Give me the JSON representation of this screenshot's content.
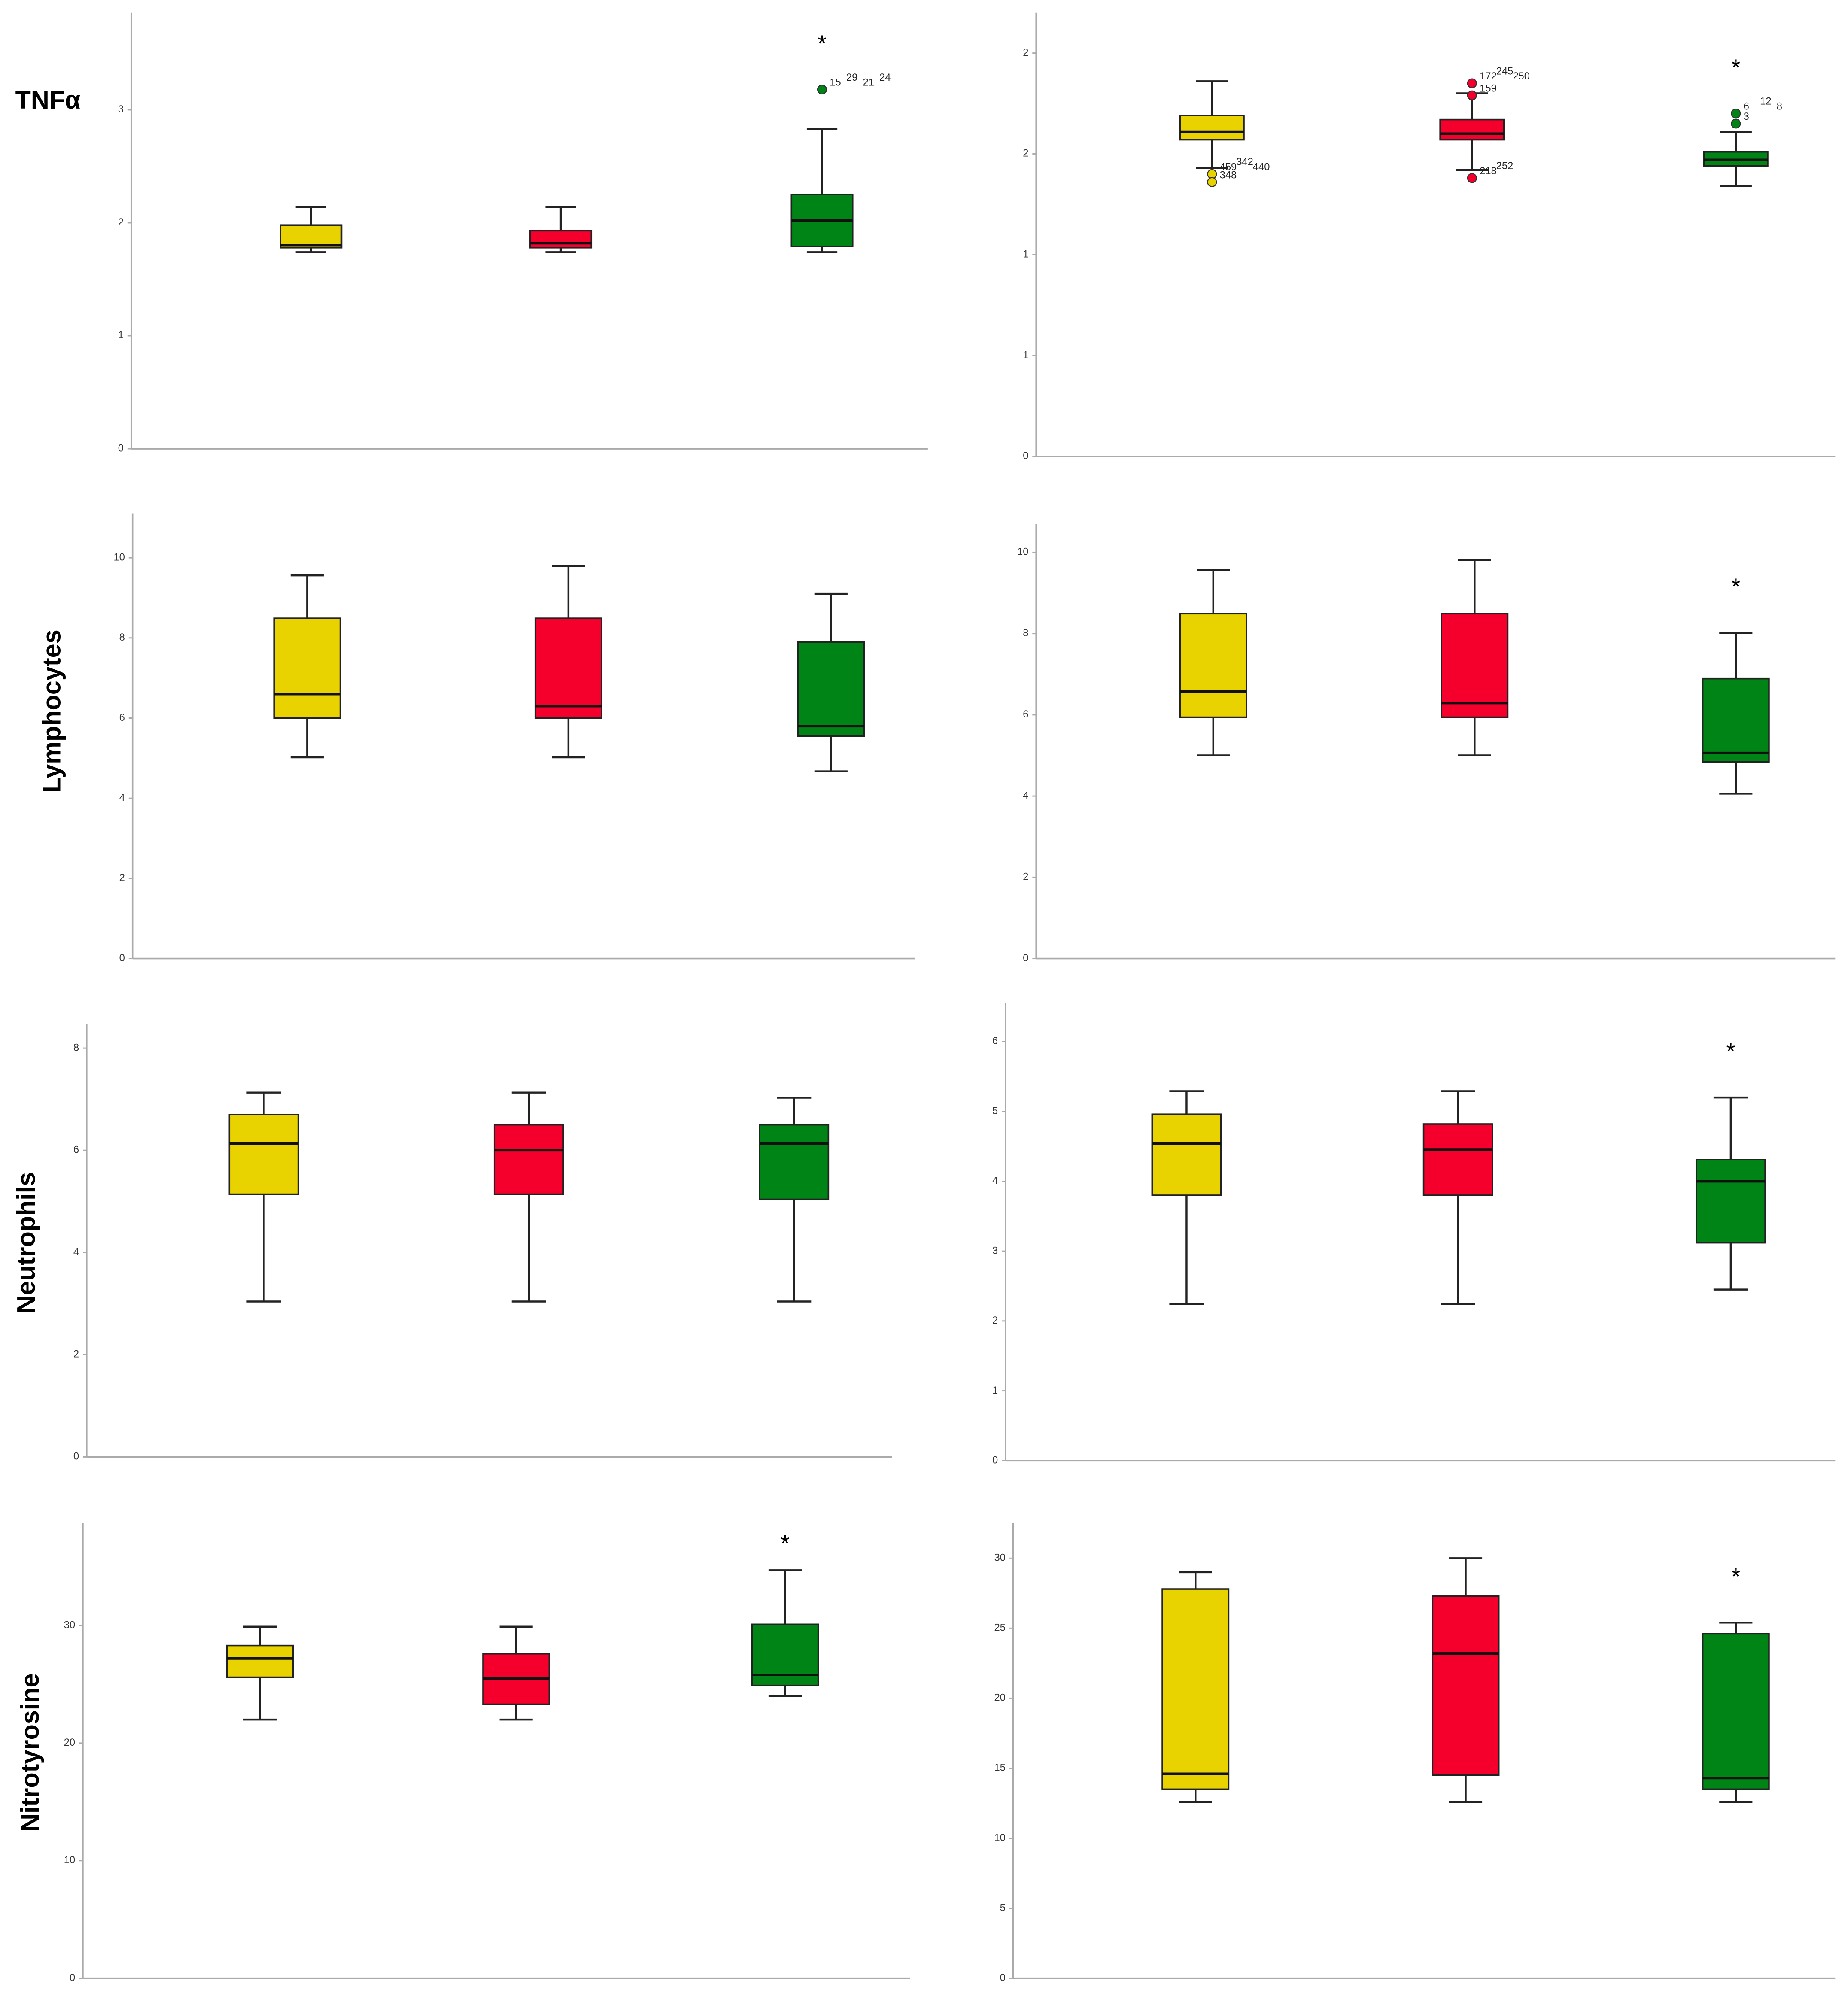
{
  "chart_data": [
    {
      "type": "box",
      "ylabel": "TNFα",
      "ylim": [
        0,
        3.86
      ],
      "yticks": [
        0,
        1,
        2,
        3
      ],
      "series": [
        {
          "color": "#e8d300",
          "whislo": 1.74,
          "q1": 1.78,
          "med": 1.8,
          "q3": 1.98,
          "whishi": 2.14
        },
        {
          "color": "#f5002d",
          "whislo": 1.74,
          "q1": 1.78,
          "med": 1.82,
          "q3": 1.93,
          "whishi": 2.14
        },
        {
          "color": "#008416",
          "whislo": 1.74,
          "q1": 1.79,
          "med": 2.02,
          "q3": 2.25,
          "whishi": 2.83,
          "outliers": [
            {
              "value": 3.18,
              "ids": [
                "15",
                "29",
                "21",
                "24"
              ]
            }
          ],
          "annotation": "*"
        }
      ]
    },
    {
      "type": "box",
      "ylim": [
        0,
        2.2
      ],
      "yticks": [
        0,
        {
          "value": 0.5,
          "label": "1"
        },
        1,
        {
          "value": 1.5,
          "label": "2"
        },
        2
      ],
      "series": [
        {
          "color": "#e8d300",
          "whislo": 1.43,
          "q1": 1.57,
          "med": 1.61,
          "q3": 1.69,
          "whishi": 1.86,
          "outliers": [
            {
              "value": 1.4,
              "ids": [
                "459",
                "342",
                "440"
              ]
            },
            {
              "value": 1.36,
              "ids": [
                "348"
              ]
            }
          ]
        },
        {
          "color": "#f5002d",
          "whislo": 1.42,
          "q1": 1.57,
          "med": 1.6,
          "q3": 1.67,
          "whishi": 1.8,
          "outliers": [
            {
              "value": 1.85,
              "ids": [
                "172",
                "245",
                "250"
              ]
            },
            {
              "value": 1.79,
              "ids": [
                "159"
              ]
            },
            {
              "value": 1.38,
              "ids": [
                "218",
                "252"
              ]
            }
          ]
        },
        {
          "color": "#008416",
          "whislo": 1.34,
          "q1": 1.44,
          "med": 1.47,
          "q3": 1.51,
          "whishi": 1.61,
          "outliers": [
            {
              "value": 1.7,
              "ids": [
                "6",
                "12",
                "8"
              ]
            },
            {
              "value": 1.65,
              "ids": [
                "3"
              ]
            }
          ],
          "annotation": "*"
        }
      ]
    },
    {
      "type": "box",
      "ylabel": "Lymphocytes",
      "ylim": [
        0,
        11.1
      ],
      "yticks": [
        0,
        2,
        4,
        6,
        8,
        10
      ],
      "series": [
        {
          "color": "#e8d300",
          "whislo": 5.02,
          "q1": 6.0,
          "med": 6.6,
          "q3": 8.49,
          "whishi": 9.56
        },
        {
          "color": "#f5002d",
          "whislo": 5.02,
          "q1": 6.0,
          "med": 6.3,
          "q3": 8.49,
          "whishi": 9.8
        },
        {
          "color": "#008416",
          "whislo": 4.67,
          "q1": 5.55,
          "med": 5.8,
          "q3": 7.9,
          "whishi": 9.1
        }
      ]
    },
    {
      "type": "box",
      "ylim": [
        0,
        10.7
      ],
      "yticks": [
        0,
        2,
        4,
        6,
        8,
        10
      ],
      "series": [
        {
          "color": "#e8d300",
          "whislo": 5.0,
          "q1": 5.94,
          "med": 6.57,
          "q3": 8.49,
          "whishi": 9.56
        },
        {
          "color": "#f5002d",
          "whislo": 5.0,
          "q1": 5.94,
          "med": 6.29,
          "q3": 8.49,
          "whishi": 9.81
        },
        {
          "color": "#008416",
          "whislo": 4.06,
          "q1": 4.84,
          "med": 5.06,
          "q3": 6.89,
          "whishi": 8.02,
          "annotation": "*"
        }
      ]
    },
    {
      "type": "box",
      "ylabel": "Neutrophils",
      "ylim": [
        0,
        8.48
      ],
      "yticks": [
        0,
        2,
        4,
        6,
        8
      ],
      "series": [
        {
          "color": "#e8d300",
          "whislo": 3.04,
          "q1": 5.14,
          "med": 6.13,
          "q3": 6.7,
          "whishi": 7.13
        },
        {
          "color": "#f5002d",
          "whislo": 3.04,
          "q1": 5.14,
          "med": 6.0,
          "q3": 6.5,
          "whishi": 7.13
        },
        {
          "color": "#008416",
          "whislo": 3.04,
          "q1": 5.04,
          "med": 6.13,
          "q3": 6.5,
          "whishi": 7.03
        }
      ]
    },
    {
      "type": "box",
      "ylim": [
        0,
        6.55
      ],
      "yticks": [
        0,
        1,
        2,
        3,
        4,
        5,
        6
      ],
      "series": [
        {
          "color": "#e8d300",
          "whislo": 2.24,
          "q1": 3.8,
          "med": 4.54,
          "q3": 4.96,
          "whishi": 5.29
        },
        {
          "color": "#f5002d",
          "whislo": 2.24,
          "q1": 3.8,
          "med": 4.45,
          "q3": 4.82,
          "whishi": 5.29
        },
        {
          "color": "#008416",
          "whislo": 2.45,
          "q1": 3.12,
          "med": 4.0,
          "q3": 4.31,
          "whishi": 5.2,
          "annotation": "*"
        }
      ]
    },
    {
      "type": "box",
      "ylabel": "Nitrotyrosine",
      "ylim": [
        0,
        38.7
      ],
      "yticks": [
        0,
        10,
        20,
        30
      ],
      "series": [
        {
          "color": "#e8d300",
          "whislo": 22.0,
          "q1": 25.6,
          "med": 27.2,
          "q3": 28.3,
          "whishi": 29.9
        },
        {
          "color": "#f5002d",
          "whislo": 22.0,
          "q1": 23.3,
          "med": 25.5,
          "q3": 27.6,
          "whishi": 29.9
        },
        {
          "color": "#008416",
          "whislo": 24.0,
          "q1": 24.9,
          "med": 25.8,
          "q3": 30.1,
          "whishi": 34.7,
          "annotation": "*"
        }
      ]
    },
    {
      "type": "box",
      "ylim": [
        0,
        32.5
      ],
      "yticks": [
        0,
        5,
        10,
        15,
        20,
        25,
        30
      ],
      "series": [
        {
          "color": "#e8d300",
          "whislo": 12.6,
          "q1": 13.5,
          "med": 14.6,
          "q3": 27.8,
          "whishi": 29.0
        },
        {
          "color": "#f5002d",
          "whislo": 12.6,
          "q1": 14.5,
          "med": 23.2,
          "q3": 27.3,
          "whishi": 30.0
        },
        {
          "color": "#008416",
          "whislo": 12.6,
          "q1": 13.5,
          "med": 14.3,
          "q3": 24.6,
          "whishi": 25.4,
          "annotation": "*"
        }
      ]
    }
  ]
}
